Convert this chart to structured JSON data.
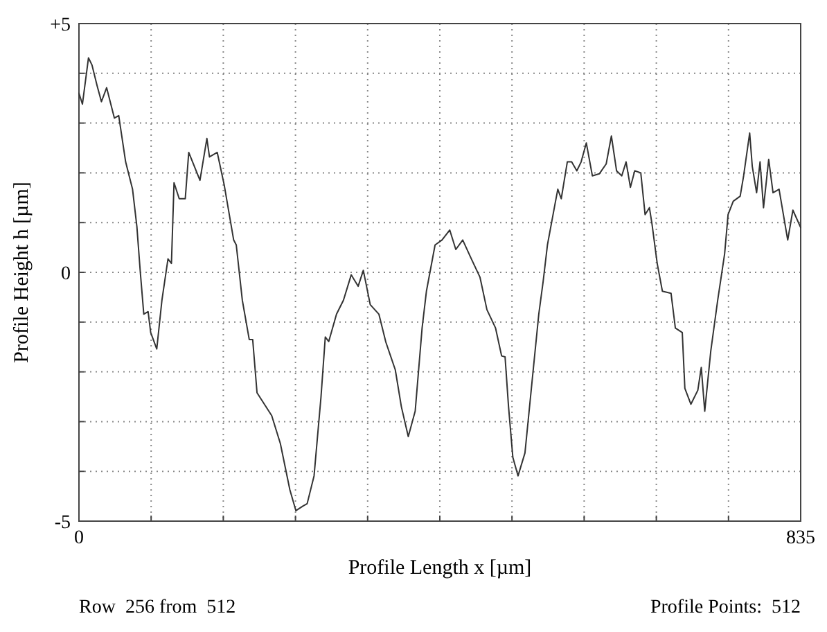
{
  "chart_data": {
    "type": "line",
    "xlabel": "Profile Length x [µm]",
    "ylabel": "Profile Height h [µm]",
    "annotations": [
      "Row  256 from  512",
      "Profile Points:  512"
    ],
    "xlim": [
      0,
      835
    ],
    "ylim": [
      -5,
      5
    ],
    "xticks": [
      0,
      {
        "value": 83.5,
        "label": null
      },
      {
        "value": 167,
        "label": null
      },
      {
        "value": 250.5,
        "label": null
      },
      {
        "value": 334,
        "label": null
      },
      {
        "value": 417.5,
        "label": null
      },
      {
        "value": 501,
        "label": null
      },
      {
        "value": 584.5,
        "label": null
      },
      {
        "value": 668,
        "label": null
      },
      {
        "value": 751.5,
        "label": null
      },
      835
    ],
    "yticks": [
      {
        "value": 5,
        "label": "+5"
      },
      {
        "value": 4,
        "label": null
      },
      {
        "value": 3,
        "label": null
      },
      {
        "value": 2,
        "label": null
      },
      {
        "value": 1,
        "label": null
      },
      0,
      {
        "value": -1,
        "label": null
      },
      {
        "value": -2,
        "label": null
      },
      {
        "value": -3,
        "label": null
      },
      {
        "value": -4,
        "label": null
      },
      -5
    ],
    "grid": true,
    "line_style": "solid",
    "marker": "none",
    "x": [
      0,
      4,
      11,
      15,
      21,
      26,
      32,
      41,
      46,
      54,
      62,
      67,
      71,
      75,
      80,
      83,
      90,
      96,
      103,
      107,
      110,
      116,
      123,
      127,
      140,
      148,
      151,
      160,
      168,
      179,
      182,
      189,
      197,
      201,
      206,
      223,
      233,
      244,
      251,
      259,
      264,
      272,
      280,
      285,
      289,
      298,
      306,
      315,
      323,
      329,
      337,
      347,
      355,
      366,
      373,
      381,
      389,
      397,
      402,
      412,
      420,
      429,
      436,
      444,
      454,
      464,
      472,
      482,
      489,
      493,
      497,
      502,
      508,
      516,
      524,
      532,
      537,
      542,
      550,
      554,
      558,
      565,
      570,
      576,
      581,
      587,
      594,
      602,
      610,
      616,
      622,
      628,
      633,
      638,
      643,
      650,
      655,
      660,
      663,
      669,
      675,
      685,
      690,
      698,
      701,
      708,
      716,
      720,
      724,
      731,
      739,
      747,
      751,
      757,
      765,
      769,
      776,
      779,
      784,
      788,
      792,
      798,
      803,
      810,
      820,
      826,
      835
    ],
    "series": [
      {
        "color": "#333333",
        "values": [
          3.6,
          3.38,
          4.31,
          4.17,
          3.75,
          3.43,
          3.71,
          3.1,
          3.15,
          2.22,
          1.67,
          0.92,
          0,
          -0.84,
          -0.79,
          -1.21,
          -1.54,
          -0.56,
          0.27,
          0.18,
          1.8,
          1.48,
          1.48,
          2.41,
          1.85,
          2.69,
          2.32,
          2.41,
          1.76,
          0.65,
          0.55,
          -0.56,
          -1.35,
          -1.35,
          -2.42,
          -2.88,
          -3.44,
          -4.37,
          -4.79,
          -4.7,
          -4.65,
          -4.09,
          -2.51,
          -1.3,
          -1.39,
          -0.84,
          -0.56,
          -0.05,
          -0.28,
          0.04,
          -0.65,
          -0.84,
          -1.4,
          -1.96,
          -2.7,
          -3.3,
          -2.79,
          -1.12,
          -0.38,
          0.55,
          0.65,
          0.85,
          0.46,
          0.65,
          0.27,
          -0.1,
          -0.75,
          -1.12,
          -1.68,
          -1.7,
          -2.7,
          -3.72,
          -4.09,
          -3.63,
          -2.23,
          -0.84,
          -0.19,
          0.55,
          1.3,
          1.67,
          1.48,
          2.22,
          2.22,
          2.04,
          2.22,
          2.6,
          1.94,
          1.98,
          2.18,
          2.74,
          2.04,
          1.94,
          2.22,
          1.71,
          2.04,
          2.0,
          1.16,
          1.3,
          0.97,
          0.18,
          -0.38,
          -0.42,
          -1.12,
          -1.21,
          -2.33,
          -2.65,
          -2.37,
          -1.91,
          -2.79,
          -1.58,
          -0.56,
          0.37,
          1.16,
          1.43,
          1.53,
          1.94,
          2.8,
          2.13,
          1.6,
          2.22,
          1.3,
          2.27,
          1.6,
          1.67,
          0.65,
          1.25,
          0.9
        ]
      }
    ]
  }
}
